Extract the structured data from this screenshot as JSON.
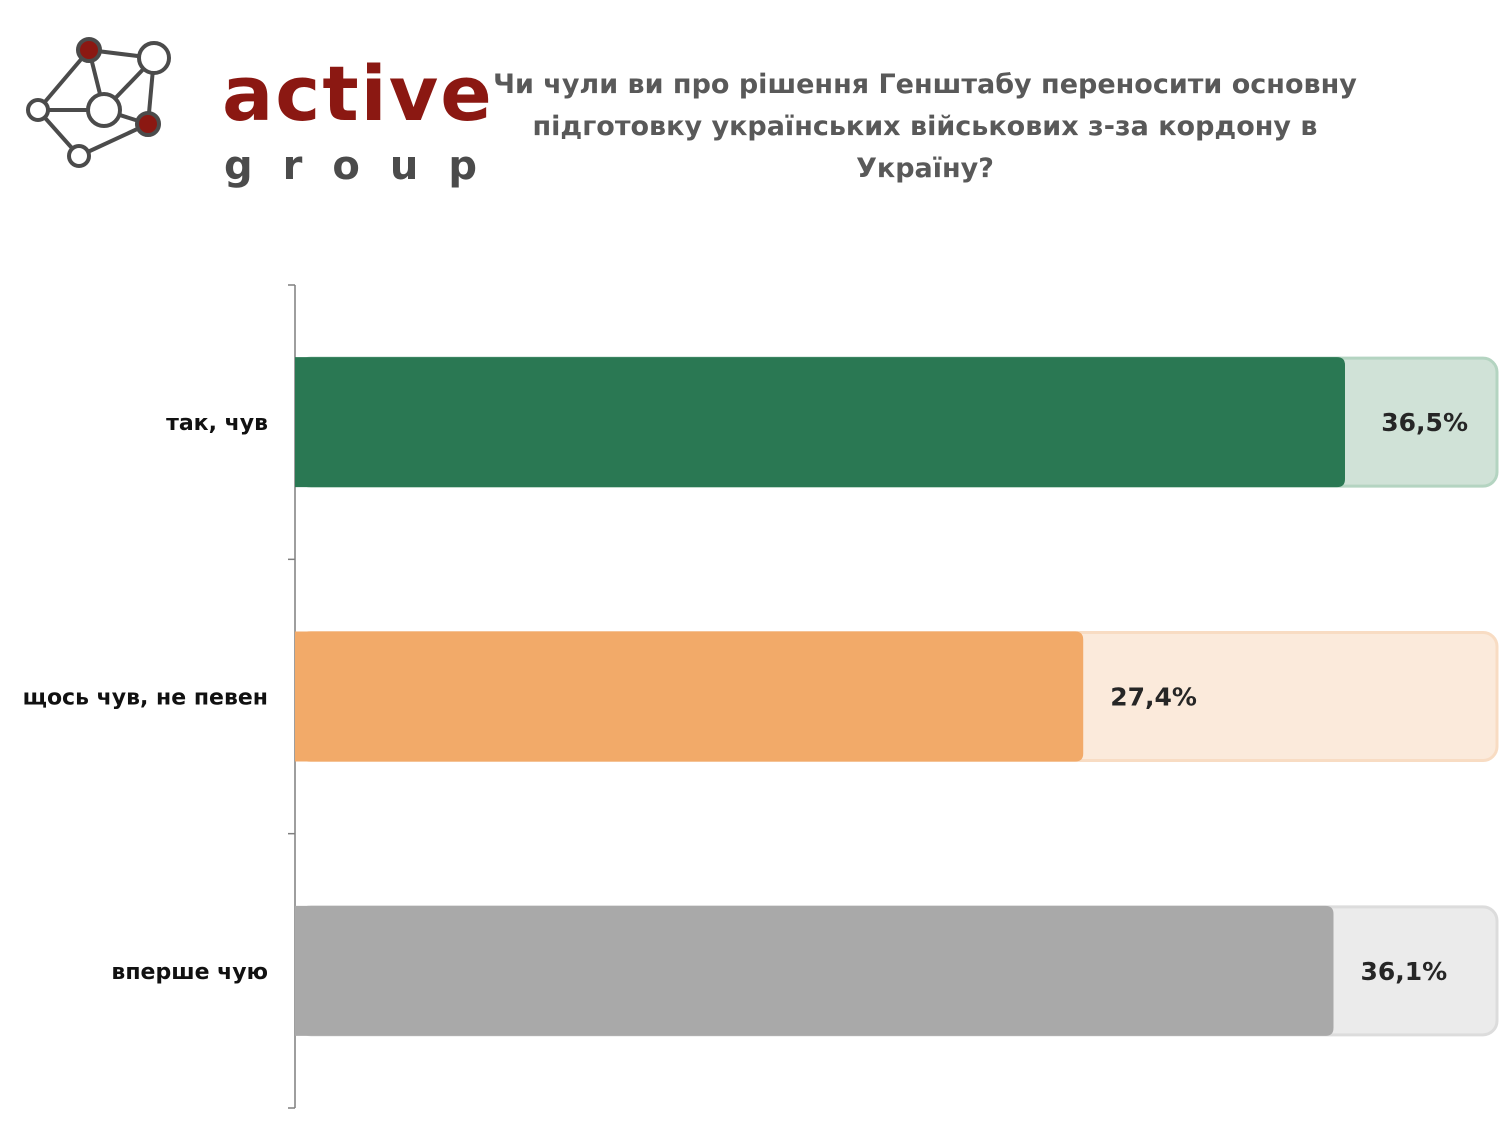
{
  "logo": {
    "word": "active",
    "sub": "group",
    "brand_color": "#8b1812",
    "node_color": "#4b4b4b"
  },
  "chart_data": {
    "type": "bar",
    "orientation": "horizontal",
    "title": "Чи чули ви про рішення Генштабу переносити основну підготовку українських військових з-за кордону в Україну?",
    "categories": [
      "так, чув",
      "щось чув, не певен",
      "вперше чую"
    ],
    "values": [
      36.5,
      27.4,
      36.1
    ],
    "value_labels": [
      "36,5%",
      "27,4%",
      "36,1%"
    ],
    "unit": "%",
    "xlim": [
      0,
      36.5
    ],
    "colors": [
      "#2a7853",
      "#f2aa69",
      "#a9a9a9"
    ],
    "track_colors": [
      "#d0e2d7",
      "#fbeadb",
      "#ebebeb"
    ],
    "track_border_colors": [
      "#b4d4c1",
      "#f8dcc3",
      "#dcdcdc"
    ],
    "grid": false,
    "legend": "none"
  }
}
